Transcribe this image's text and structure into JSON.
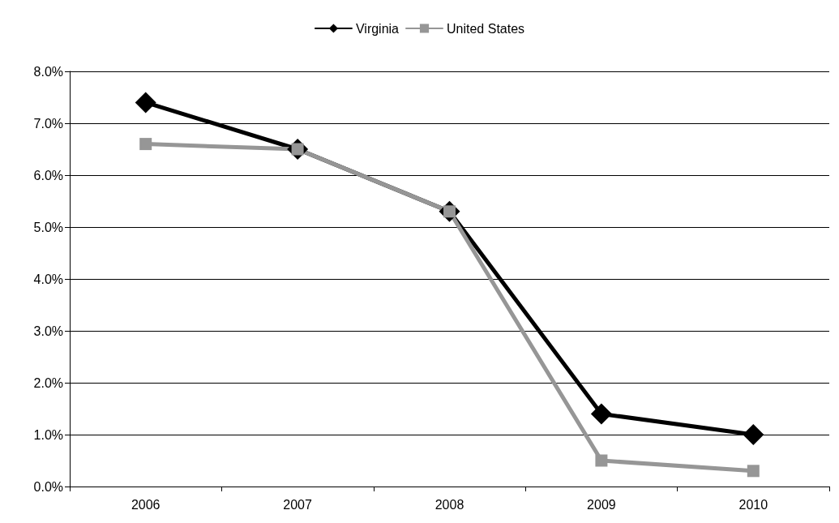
{
  "chart_data": {
    "type": "line",
    "categories": [
      "2006",
      "2007",
      "2008",
      "2009",
      "2010"
    ],
    "series": [
      {
        "name": "Virginia",
        "color": "#000000",
        "marker": "diamond",
        "values": [
          7.4,
          6.5,
          5.3,
          1.4,
          1.0
        ]
      },
      {
        "name": "United States",
        "color": "#969696",
        "marker": "square",
        "values": [
          6.6,
          6.5,
          5.3,
          0.5,
          0.3
        ]
      }
    ],
    "ylim": [
      0,
      8
    ],
    "yticks": [
      {
        "value": 0,
        "label": "0.0%"
      },
      {
        "value": 1,
        "label": "1.0%"
      },
      {
        "value": 2,
        "label": "2.0%"
      },
      {
        "value": 3,
        "label": "3.0%"
      },
      {
        "value": 4,
        "label": "4.0%"
      },
      {
        "value": 5,
        "label": "5.0%"
      },
      {
        "value": 6,
        "label": "6.0%"
      },
      {
        "value": 7,
        "label": "7.0%"
      },
      {
        "value": 8,
        "label": "8.0%"
      }
    ],
    "grid": "y",
    "legend": "top",
    "line_style": "solid"
  }
}
